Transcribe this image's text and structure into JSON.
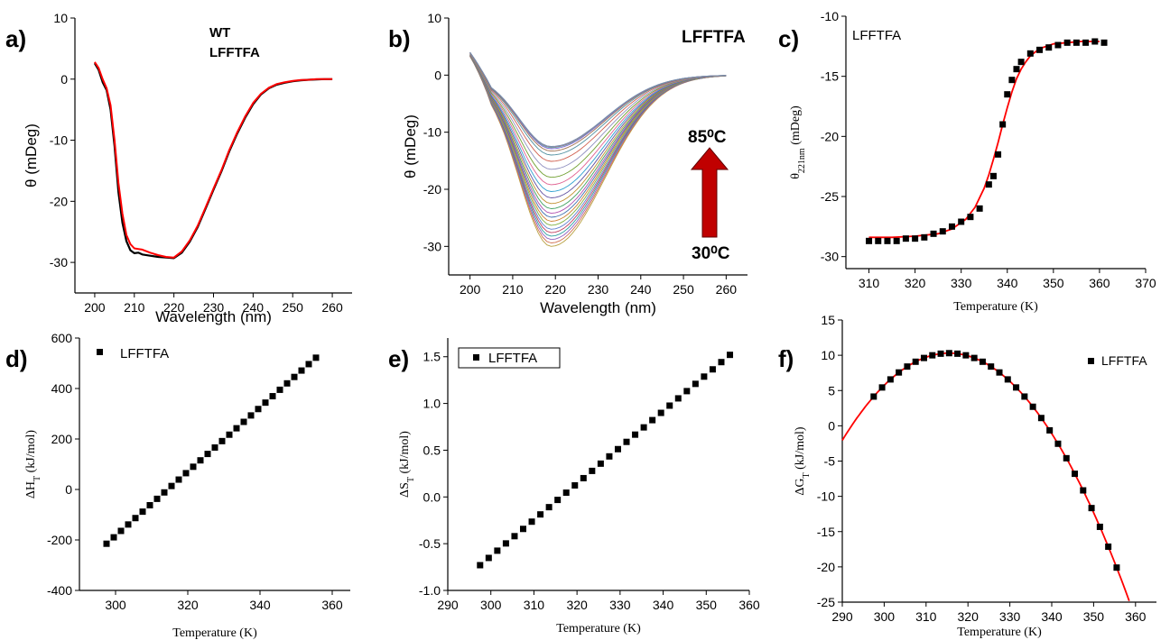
{
  "chart_data": [
    {
      "panel": "a)",
      "type": "line",
      "xlabel": "Wavelength (nm)",
      "ylabel": "θ (mDeg)",
      "xlim": [
        195,
        265
      ],
      "ylim": [
        -35,
        10
      ],
      "xticks": [
        200,
        210,
        220,
        230,
        240,
        250,
        260
      ],
      "yticks": [
        10,
        0,
        -10,
        -20,
        -30
      ],
      "legend": [
        "WT",
        "LFFTFA"
      ],
      "series": [
        {
          "name": "WT",
          "color": "#000000",
          "x": [
            200,
            201,
            202,
            203,
            204,
            205,
            206,
            207,
            208,
            209,
            210,
            211,
            212,
            214,
            216,
            218,
            220,
            222,
            224,
            226,
            228,
            230,
            232,
            234,
            236,
            238,
            240,
            242,
            244,
            246,
            248,
            250,
            252,
            254,
            256,
            258,
            260
          ],
          "y": [
            2.6,
            1.5,
            -0.5,
            -1.8,
            -5,
            -11,
            -18.5,
            -23.5,
            -26.5,
            -28,
            -28.5,
            -28.4,
            -28.7,
            -28.9,
            -29.1,
            -29.2,
            -29.3,
            -28.4,
            -26.6,
            -24.2,
            -21.2,
            -18.1,
            -15.1,
            -11.8,
            -8.9,
            -6.3,
            -4.1,
            -2.5,
            -1.5,
            -0.9,
            -0.6,
            -0.35,
            -0.2,
            -0.1,
            -0.05,
            0,
            0
          ]
        },
        {
          "name": "LFFTFA",
          "color": "#ff0000",
          "x": [
            200,
            201,
            202,
            203,
            204,
            205,
            206,
            207,
            208,
            209,
            210,
            211,
            212,
            214,
            216,
            218,
            220,
            222,
            224,
            226,
            228,
            230,
            232,
            234,
            236,
            238,
            240,
            242,
            244,
            246,
            248,
            250,
            252,
            254,
            256,
            258,
            260
          ],
          "y": [
            2.8,
            1.8,
            0,
            -1.5,
            -4.3,
            -10,
            -17,
            -22,
            -25.5,
            -27,
            -27.7,
            -27.8,
            -27.9,
            -28.4,
            -28.8,
            -29.1,
            -29.2,
            -28.2,
            -26.4,
            -24,
            -21,
            -17.9,
            -14.9,
            -11.6,
            -8.7,
            -6.1,
            -3.9,
            -2.4,
            -1.4,
            -0.8,
            -0.5,
            -0.3,
            -0.15,
            -0.1,
            0,
            0,
            0
          ]
        }
      ]
    },
    {
      "panel": "b)",
      "type": "line",
      "title": "LFFTFA",
      "xlabel": "Wavelength (nm)",
      "ylabel": "θ (mDeg)",
      "xlim": [
        195,
        265
      ],
      "ylim": [
        -35,
        10
      ],
      "xticks": [
        200,
        210,
        220,
        230,
        240,
        250,
        260
      ],
      "yticks": [
        10,
        0,
        -10,
        -20,
        -30
      ],
      "annotation_top": "85⁰C",
      "annotation_bottom": "30⁰C",
      "curve_minima": [
        -30,
        -29.4,
        -28.8,
        -28.2,
        -27.6,
        -27,
        -26.3,
        -25.6,
        -24.9,
        -24.2,
        -23.4,
        -22.5,
        -21.5,
        -20.4,
        -19.2,
        -17.9,
        -16.5,
        -15.1,
        -14,
        -13.3,
        -12.9,
        -12.7,
        -12.6,
        -12.5
      ],
      "series_colors": [
        "#b8a040",
        "#d07050",
        "#9060c0",
        "#30a0a0",
        "#c04060",
        "#6080d0",
        "#80b040",
        "#d08030",
        "#4070b0",
        "#b050b0",
        "#40a060",
        "#c09030",
        "#6050a0",
        "#30a0d0",
        "#e06090",
        "#70a030",
        "#9090c0",
        "#d06050",
        "#5090a0",
        "#a07050",
        "#8060d0",
        "#40b0a0",
        "#c07090",
        "#7090b0"
      ]
    },
    {
      "panel": "c)",
      "type": "scatter",
      "legend": [
        "LFFTFA"
      ],
      "xlabel": "Temperature (K)",
      "ylabel_main": "θ",
      "ylabel_sub": "221nm",
      "ylabel_unit": " (mDeg)",
      "xlim": [
        305,
        370
      ],
      "ylim": [
        -31,
        -10
      ],
      "xticks": [
        310,
        320,
        330,
        340,
        350,
        360,
        370
      ],
      "yticks": [
        -10,
        -15,
        -20,
        -25,
        -30
      ],
      "x": [
        310,
        312,
        314,
        316,
        318,
        320,
        322,
        324,
        326,
        328,
        330,
        332,
        334,
        336,
        337,
        338,
        339,
        340,
        341,
        342,
        343,
        345,
        347,
        349,
        351,
        353,
        355,
        357,
        359,
        361
      ],
      "y": [
        -28.7,
        -28.7,
        -28.7,
        -28.7,
        -28.5,
        -28.5,
        -28.4,
        -28.1,
        -27.9,
        -27.5,
        -27.1,
        -26.7,
        -26,
        -24,
        -23.3,
        -21.5,
        -19,
        -16.5,
        -15.3,
        -14.4,
        -13.8,
        -13.1,
        -12.8,
        -12.6,
        -12.4,
        -12.2,
        -12.2,
        -12.2,
        -12.1,
        -12.2
      ],
      "fit": {
        "color": "#ff0000",
        "x": [
          310,
          315,
          320,
          325,
          328,
          331,
          333,
          335,
          336,
          337,
          338,
          339,
          340,
          341,
          342,
          343,
          344,
          345,
          347,
          350,
          353,
          356,
          360
        ],
        "y": [
          -28.4,
          -28.4,
          -28.3,
          -28.1,
          -27.7,
          -26.9,
          -25.9,
          -24.3,
          -23.2,
          -21.9,
          -20.5,
          -19,
          -17.6,
          -16.3,
          -15.2,
          -14.4,
          -13.8,
          -13.3,
          -12.7,
          -12.3,
          -12.2,
          -12.1,
          -12.1
        ]
      }
    },
    {
      "panel": "d)",
      "type": "scatter",
      "legend": [
        "LFFTFA"
      ],
      "xlabel": "Temperature (K)",
      "ylabel_main": "ΔH",
      "ylabel_sub": "T",
      "ylabel_unit": " (kJ/mol)",
      "xlim": [
        290,
        365
      ],
      "ylim": [
        -400,
        600
      ],
      "xticks": [
        300,
        320,
        340,
        360
      ],
      "yticks": [
        600,
        400,
        200,
        0,
        -200,
        -400
      ],
      "x_start": 297.5,
      "x_step": 2,
      "n_points": 30,
      "y_start": -215,
      "y_end": 522
    },
    {
      "panel": "e)",
      "type": "scatter",
      "legend": [
        "LFFTFA"
      ],
      "xlabel": "Temperature (K)",
      "ylabel_main": "ΔS",
      "ylabel_sub": "T",
      "ylabel_unit": " (kJ/mol)",
      "xlim": [
        290,
        360
      ],
      "ylim": [
        -1,
        1.7
      ],
      "xticks": [
        290,
        300,
        310,
        320,
        330,
        340,
        350,
        360
      ],
      "yticks": [
        1.5,
        1.0,
        0.5,
        0.0,
        -0.5,
        -1.0
      ],
      "x_start": 297.5,
      "x_step": 2,
      "n_points": 30,
      "y_start": -0.73,
      "y_end": 1.52
    },
    {
      "panel": "f)",
      "type": "scatter",
      "legend": [
        "LFFTFA"
      ],
      "xlabel": "Temperature (K)",
      "ylabel_main": "ΔG",
      "ylabel_sub": "T",
      "ylabel_unit": " (kJ/mol)",
      "xlim": [
        290,
        365
      ],
      "ylim": [
        -25,
        15
      ],
      "xticks": [
        290,
        300,
        310,
        320,
        330,
        340,
        350,
        360
      ],
      "yticks": [
        15,
        10,
        5,
        0,
        -5,
        -10,
        -15,
        -20,
        -25
      ],
      "x_start": 297.5,
      "x_step": 2,
      "n_points": 30,
      "peak_x": 315.5,
      "peak_y": 10.3,
      "curvature": 0.019,
      "fit_color": "#ff0000"
    }
  ]
}
